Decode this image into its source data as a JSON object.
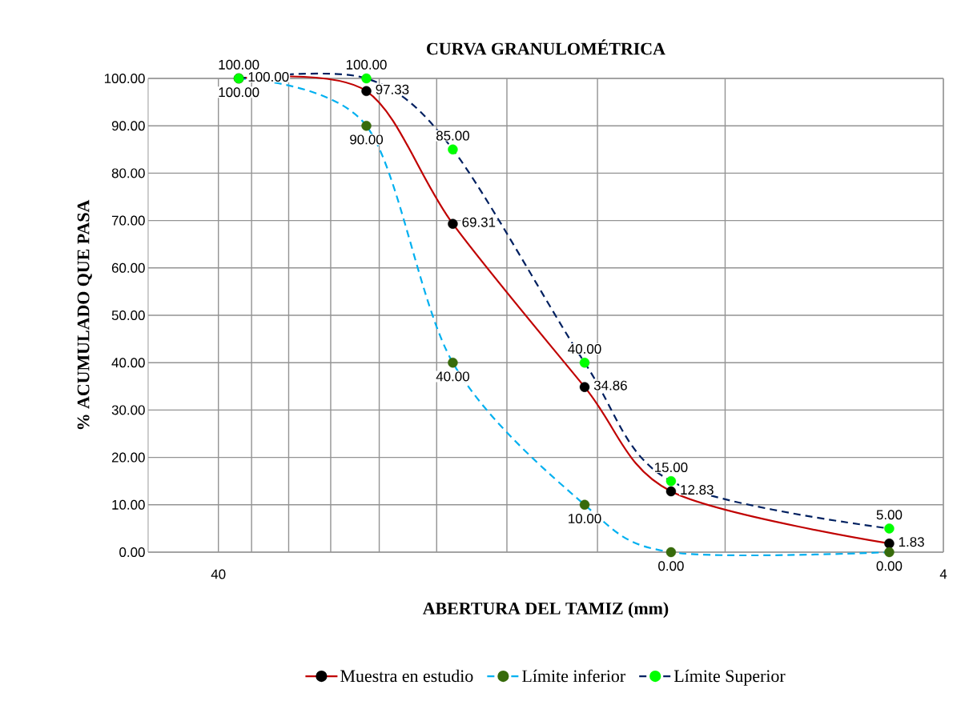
{
  "chart_data": {
    "type": "line",
    "title": "CURVA GRANULOMÉTRICA",
    "xlabel": "ABERTURA DEL TAMIZ (mm)",
    "ylabel": "% ACUMULADO QUE PASA",
    "x": [
      37.5,
      25,
      19,
      12.5,
      9.5,
      4.75
    ],
    "log": "x",
    "xlim": [
      50,
      4
    ],
    "xticks": [
      {
        "value": 40,
        "label": "40"
      },
      {
        "value": 36,
        "label": null
      },
      {
        "value": 32,
        "label": null
      },
      {
        "value": 28,
        "label": null
      },
      {
        "value": 24,
        "label": null
      },
      {
        "value": 20,
        "label": null
      },
      {
        "value": 16,
        "label": null
      },
      {
        "value": 12,
        "label": null
      },
      {
        "value": 8,
        "label": null
      },
      {
        "value": 4,
        "label": "4"
      }
    ],
    "ylim": [
      0,
      100
    ],
    "yticks": [
      {
        "value": 0,
        "label": "0.00"
      },
      {
        "value": 10,
        "label": "10.00"
      },
      {
        "value": 20,
        "label": "20.00"
      },
      {
        "value": 30,
        "label": "30.00"
      },
      {
        "value": 40,
        "label": "40.00"
      },
      {
        "value": 50,
        "label": "50.00"
      },
      {
        "value": 60,
        "label": "60.00"
      },
      {
        "value": 70,
        "label": "70.00"
      },
      {
        "value": 80,
        "label": "80.00"
      },
      {
        "value": 90,
        "label": "90.00"
      },
      {
        "value": 100,
        "label": "100.00"
      }
    ],
    "grid": true,
    "legend": "bottom",
    "marker": "circle",
    "series": [
      {
        "name": "Muestra en estudio",
        "color": "#c00000",
        "line_style": "solid",
        "colors": [
          "#000000",
          "#000000",
          "#000000",
          "#000000",
          "#000000",
          "#000000"
        ],
        "values": [
          100,
          97.33,
          69.31,
          34.86,
          12.83,
          1.83
        ],
        "value_labels": [
          "100.00",
          "97.33",
          "69.31",
          "34.86",
          "12.83",
          "1.83"
        ]
      },
      {
        "name": "Límite inferior",
        "color": "#00b0f0",
        "line_style": "dashed",
        "colors": [
          "#376b0b",
          "#376b0b",
          "#376b0b",
          "#376b0b",
          "#376b0b",
          "#376b0b"
        ],
        "values": [
          100,
          90,
          40,
          10,
          0,
          0
        ],
        "value_labels": [
          "100.00",
          "90.00",
          "40.00",
          "10.00",
          "0.00",
          "0.00"
        ]
      },
      {
        "name": "Límite Superior",
        "color": "#002060",
        "line_style": "dashed",
        "colors": [
          "#00ff00",
          "#00ff00",
          "#00ff00",
          "#00ff00",
          "#00ff00",
          "#00ff00"
        ],
        "values": [
          100,
          100,
          85,
          40,
          15,
          5
        ],
        "value_labels": [
          "100.00",
          "100.00",
          "85.00",
          "40.00",
          "15.00",
          "5.00"
        ]
      }
    ]
  }
}
